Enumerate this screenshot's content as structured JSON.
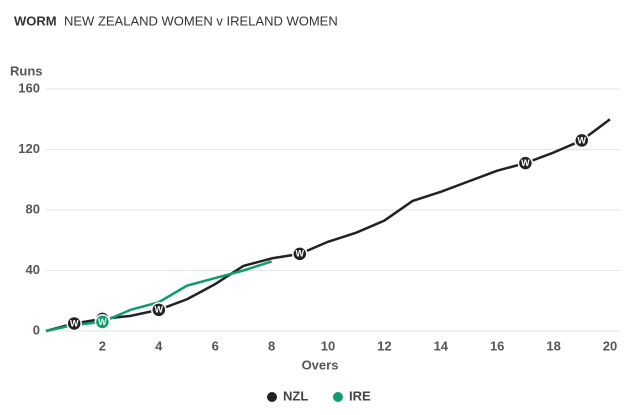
{
  "chart_data": {
    "type": "line",
    "title": "WORM",
    "subtitle": "NEW ZEALAND WOMEN v IRELAND WOMEN",
    "y_label": "Runs",
    "x_label": "Overs",
    "x": [
      0,
      1,
      2,
      3,
      4,
      5,
      6,
      7,
      8,
      9,
      10,
      11,
      12,
      13,
      14,
      15,
      16,
      17,
      18,
      19,
      20
    ],
    "series": [
      {
        "name": "NZL",
        "color": "#222222",
        "values": [
          0,
          5,
          8,
          10,
          14,
          21,
          31,
          43,
          48,
          51,
          59,
          65,
          73,
          86,
          92,
          99,
          106,
          111,
          118,
          126,
          140
        ],
        "wickets": [
          1,
          2,
          4,
          9,
          17,
          19
        ]
      },
      {
        "name": "IRE",
        "color": "#0f9d6a",
        "values": [
          0,
          4,
          6,
          14,
          19,
          30,
          35,
          40,
          46,
          null,
          null,
          null,
          null,
          null,
          null,
          null,
          null,
          null,
          null,
          null,
          null
        ],
        "wickets": [
          2
        ]
      }
    ],
    "wicket_label": "W",
    "xlim": [
      0,
      20
    ],
    "xticks": [
      2,
      4,
      6,
      8,
      10,
      12,
      14,
      16,
      18,
      20
    ],
    "ylim": [
      0,
      160
    ],
    "yticks": [
      0,
      40,
      80,
      120,
      160
    ],
    "grid": true,
    "legend": "bottom"
  }
}
